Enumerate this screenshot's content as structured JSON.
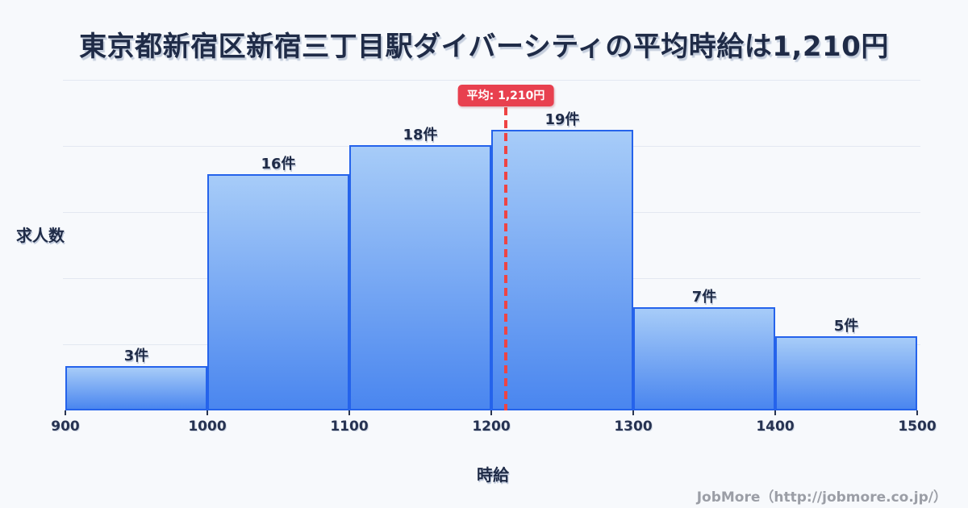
{
  "header": {
    "title": "東京都新宿区新宿三丁目駅ダイバーシティの平均時給は1,210円"
  },
  "average": {
    "badge_label": "平均: 1,210円",
    "value": 1210
  },
  "axes": {
    "y_label": "求人数",
    "x_label": "時給"
  },
  "footer": {
    "credit": "JobMore（http://jobmore.co.jp/）"
  },
  "colors": {
    "background": "#f7f9fc",
    "title_text": "#1f2b47",
    "gridline": "#e3e8f1",
    "bar_border": "#2563eb",
    "bar_gradient_top": "#a7ccf8",
    "bar_gradient_bottom": "#4a86ef",
    "average_badge": "#e8404f",
    "average_line": "#ee4444",
    "tick_text": "#273352",
    "credit_text": "#9b9ea6"
  },
  "chart_data": {
    "type": "bar",
    "subtype": "histogram",
    "title": "東京都新宿区新宿三丁目駅ダイバーシティの平均時給は1,210円",
    "categories": [
      "900-1000",
      "1000-1100",
      "1100-1200",
      "1200-1300",
      "1300-1400",
      "1400-1500"
    ],
    "values": [
      3,
      16,
      18,
      19,
      7,
      5
    ],
    "bar_labels": [
      "3件",
      "16件",
      "18件",
      "19件",
      "7件",
      "5件"
    ],
    "x_ticks": [
      "900",
      "1000",
      "1100",
      "1200",
      "1300",
      "1400",
      "1500"
    ],
    "x_tick_values": [
      900,
      1000,
      1100,
      1200,
      1300,
      1400,
      1500
    ],
    "xlabel": "時給",
    "ylabel": "求人数",
    "xlim": [
      900,
      1500
    ],
    "ylim": [
      0,
      22.4
    ],
    "grid": true,
    "gridline_count": 5,
    "legend": "none",
    "average_line": {
      "x": 1210,
      "label": "平均: 1,210円"
    }
  }
}
